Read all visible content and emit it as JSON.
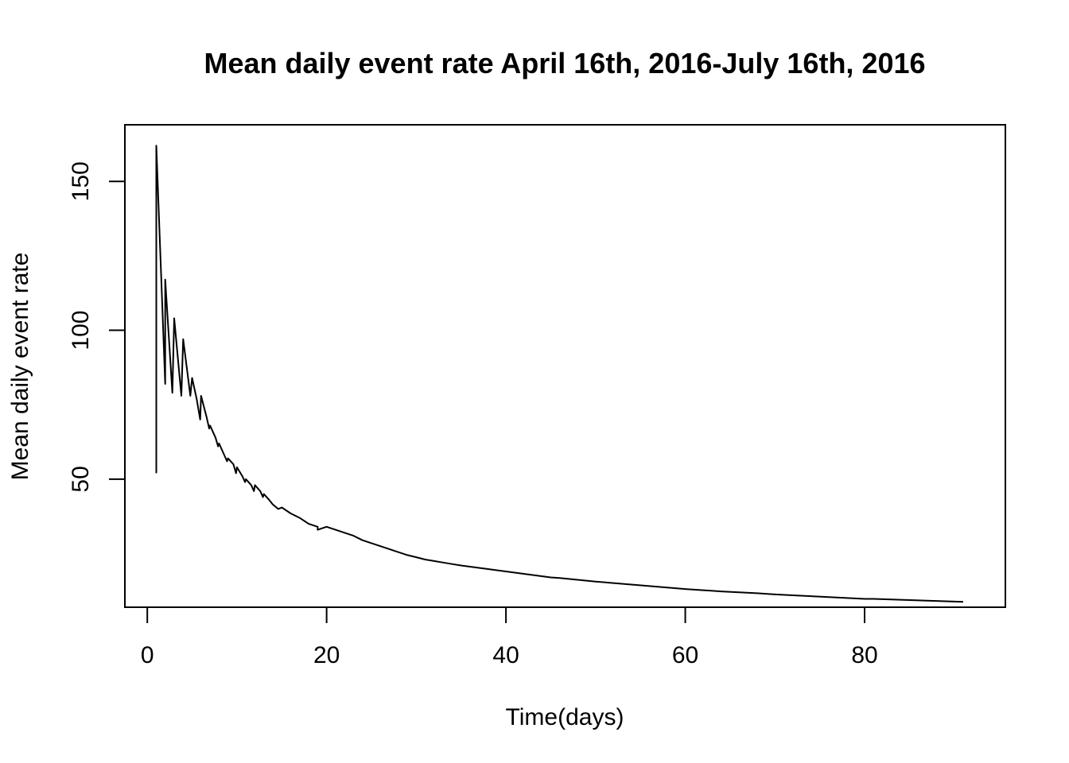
{
  "chart_data": {
    "type": "line",
    "title": "Mean daily event rate April 16th, 2016-July 16th, 2016",
    "xlabel": "Time(days)",
    "ylabel": "Mean daily event rate",
    "xlim": [
      -2.5,
      95.7
    ],
    "ylim": [
      7,
      169
    ],
    "x_ticks": [
      0,
      20,
      40,
      60,
      80
    ],
    "y_ticks": [
      50,
      100,
      150
    ],
    "grid": false,
    "legend": "none",
    "line_color": "#000000",
    "series": [
      {
        "x": [
          1,
          1,
          2,
          2,
          2.8,
          3,
          3.8,
          4,
          4.8,
          5,
          5.5,
          5.9,
          6,
          6.6,
          6.9,
          7,
          7.6,
          7.9,
          8,
          8.6,
          8.9,
          9,
          9.6,
          9.9,
          10,
          10.6,
          10.9,
          11,
          11.6,
          11.9,
          12,
          12.6,
          12.9,
          13,
          13.6,
          14,
          14.6,
          15,
          16,
          17,
          18,
          19,
          19,
          20,
          21,
          22,
          23,
          24,
          25,
          26,
          27,
          28,
          29,
          30,
          31,
          32,
          33,
          34,
          35,
          36,
          37,
          38,
          39,
          40,
          42,
          44,
          45,
          46,
          48,
          50,
          52,
          54,
          56,
          58,
          60,
          62,
          64,
          66,
          68,
          69,
          70,
          72,
          74,
          76,
          78,
          80,
          81,
          82,
          84,
          85,
          86,
          88,
          90,
          91
        ],
        "y": [
          52,
          162,
          82,
          117,
          79,
          104,
          78,
          97,
          78,
          84,
          77,
          70,
          78,
          71,
          67,
          68,
          64,
          61,
          62,
          58,
          56,
          57,
          55,
          52,
          54,
          51,
          49,
          50,
          48,
          46,
          48,
          46,
          44,
          45,
          43,
          41.5,
          40,
          40.5,
          38.5,
          37,
          35,
          34,
          33,
          34,
          33,
          32,
          31,
          29.5,
          28.5,
          27.5,
          26.5,
          25.5,
          24.5,
          23.8,
          23,
          22.5,
          22,
          21.5,
          21,
          20.6,
          20.2,
          19.8,
          19.4,
          19,
          18.2,
          17.4,
          17,
          16.8,
          16.2,
          15.6,
          15.1,
          14.6,
          14.1,
          13.6,
          13.1,
          12.7,
          12.3,
          12,
          11.7,
          11.5,
          11.3,
          11,
          10.7,
          10.4,
          10.1,
          9.8,
          9.8,
          9.7,
          9.5,
          9.4,
          9.3,
          9.1,
          8.9,
          8.8
        ]
      }
    ]
  }
}
